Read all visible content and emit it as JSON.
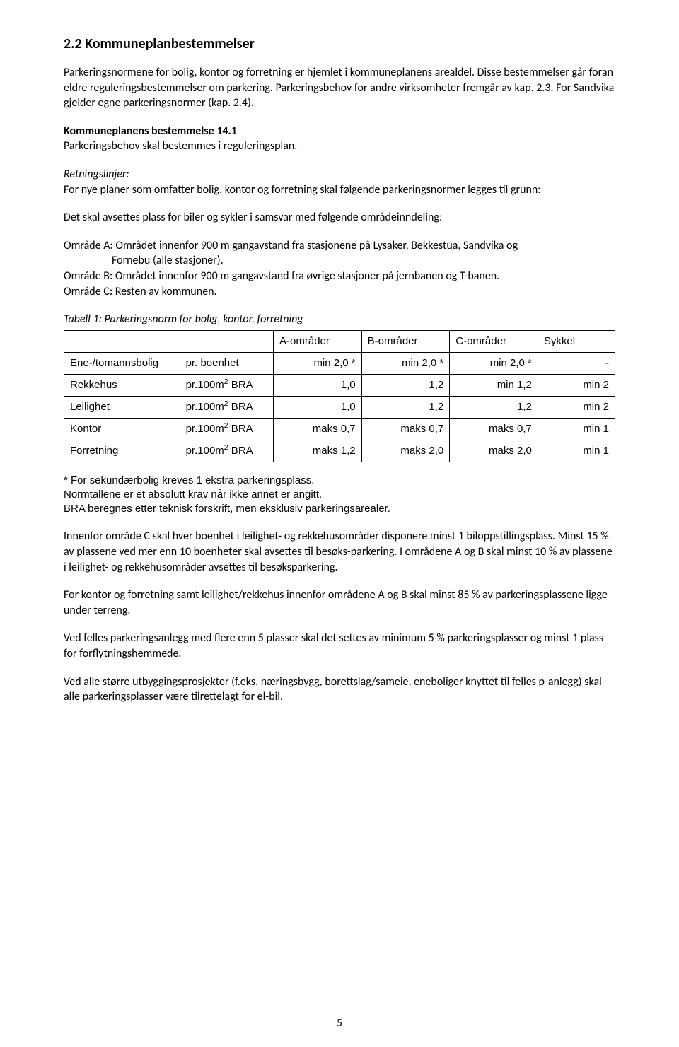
{
  "heading": "2.2 Kommuneplanbestemmelser",
  "para1": "Parkeringsnormene for bolig, kontor og forretning er hjemlet i kommuneplanens arealdel. Disse bestemmelser går foran eldre reguleringsbestemmelser om parkering. Parkeringsbehov for andre virksomheter fremgår av kap. 2.3. For Sandvika gjelder egne parkeringsnormer (kap. 2.4).",
  "bestemmelse_title": "Kommuneplanens bestemmelse 14.1",
  "bestemmelse_text": "Parkeringsbehov skal bestemmes i reguleringsplan.",
  "retningslinjer_label": "Retningslinjer:",
  "retningslinjer_text": "For nye planer som omfatter bolig, kontor og forretning skal følgende parkeringsnormer legges til grunn:",
  "avsettes_text": "Det skal avsettes plass for biler og sykler i samsvar med følgende områdeinndeling:",
  "omradeA_label": "Område A",
  "omradeA_text_1": ": Området innenfor 900 m gangavstand fra stasjonene på Lysaker, Bekkestua, Sandvika og",
  "omradeA_text_2": "Fornebu (alle stasjoner).",
  "omradeB_label": "Område B",
  "omradeB_text": ": Området innenfor 900 m gangavstand fra øvrige stasjoner på jernbanen og T-banen.",
  "omradeC_label": "Område C",
  "omradeC_text": ": Resten av kommunen.",
  "table_caption": "Tabell 1: Parkeringsnorm for bolig, kontor, forretning",
  "table": {
    "headers": [
      "",
      "",
      "A-områder",
      "B-områder",
      "C-områder",
      "Sykkel"
    ],
    "rows": [
      {
        "cat": "Ene-/tomannsbolig",
        "unit_plain": "pr. boenhet",
        "a": "min 2,0 *",
        "b": "min 2,0 *",
        "c": "min 2,0 *",
        "s": "-"
      },
      {
        "cat": "Rekkehus",
        "unit_bra": true,
        "a": "1,0",
        "b": "1,2",
        "c": "min 1,2",
        "s": "min 2"
      },
      {
        "cat": "Leilighet",
        "unit_bra": true,
        "a": "1,0",
        "b": "1,2",
        "c": "1,2",
        "s": "min 2"
      },
      {
        "cat": "Kontor",
        "unit_bra": true,
        "a": "maks 0,7",
        "b": "maks 0,7",
        "c": "maks 0,7",
        "s": "min 1"
      },
      {
        "cat": "Forretning",
        "unit_bra": true,
        "a": "maks 1,2",
        "b": "maks 2,0",
        "c": "maks 2,0",
        "s": "min 1"
      }
    ],
    "unit_bra_pre": "pr.100m",
    "unit_bra_sup": "2",
    "unit_bra_post": " BRA",
    "col_widths": [
      "21%",
      "17%",
      "16%",
      "16%",
      "16%",
      "14%"
    ]
  },
  "footnote1": "* For sekundærbolig kreves 1 ekstra parkeringsplass.",
  "footnote2": "Normtallene er et absolutt krav når ikke annet er angitt.",
  "footnote3": "BRA beregnes etter teknisk forskrift, men eksklusiv parkeringsarealer.",
  "para_innenfor": "Innenfor område C skal hver boenhet i leilighet- og rekkehusområder disponere minst 1 biloppstillingsplass. Minst 15 % av plassene ved mer enn 10 boenheter skal avsettes til besøks-parkering. I områdene A og B skal minst 10 % av plassene i leilighet- og rekkehusområder avsettes til besøksparkering.",
  "para_terreng": "For kontor og forretning samt leilighet/rekkehus innenfor områdene A og B skal minst 85 % av parkeringsplassene ligge under terreng.",
  "para_felles": "Ved felles parkeringsanlegg med flere enn 5 plasser skal det settes av minimum 5 % parkeringsplasser og minst 1 plass for forflytningshemmede.",
  "para_elbil": "Ved alle større utbyggingsprosjekter (f.eks. næringsbygg, borettslag/sameie, eneboliger knyttet til felles p-anlegg) skal alle parkeringsplasser være tilrettelagt for el-bil.",
  "page_number": "5"
}
